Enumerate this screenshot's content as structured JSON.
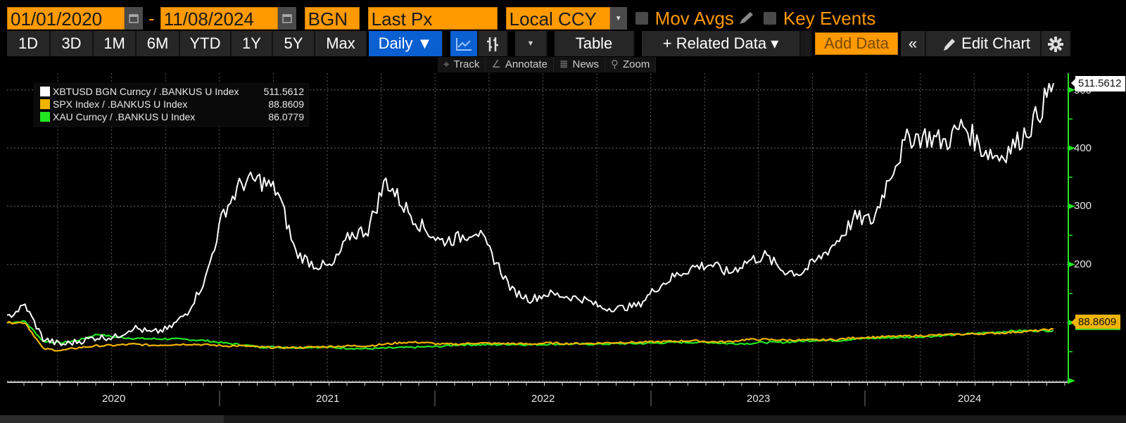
{
  "toolbar": {
    "start_date": "01/01/2020",
    "end_date": "11/08/2024",
    "date_separator": "-",
    "pricing_source": "BGN",
    "field": "Last Px",
    "currency": "Local CCY",
    "mov_avgs_label": "Mov Avgs",
    "key_events_label": "Key Events",
    "periods": [
      "1D",
      "3D",
      "1M",
      "6M",
      "YTD",
      "1Y",
      "5Y",
      "Max"
    ],
    "frequency": "Daily ▼",
    "table_label": "Table",
    "related_data_label": "+ Related Data ▾",
    "add_data_placeholder": "Add Data",
    "collapse_label": "«",
    "edit_chart_label": "Edit Chart"
  },
  "subtoolbar": {
    "track": "Track",
    "annotate": "Annotate",
    "news": "News",
    "zoom": "Zoom"
  },
  "legend": [
    {
      "name": "XBTUSD BGN Curncy / .BANKUS U Index",
      "value": "511.5612",
      "color": "#ffffff"
    },
    {
      "name": "SPX Index / .BANKUS U Index",
      "value": "88.8609",
      "color": "#f0b400"
    },
    {
      "name": "XAU Curncy / .BANKUS U Index",
      "value": "86.0779",
      "color": "#22e622"
    }
  ],
  "axis": {
    "y_ticks": [
      "500",
      "400",
      "300",
      "200",
      "100"
    ],
    "x_years": [
      "2020",
      "2021",
      "2022",
      "2023",
      "2024"
    ],
    "last_tags": {
      "xbt": "511.5612",
      "spx": "88.8609"
    }
  },
  "colors": {
    "accent_orange": "#ff9a00",
    "axis_green": "#22e622",
    "active_blue": "#0a5fd1"
  },
  "chart_data": {
    "type": "line",
    "title": "",
    "xlabel": "",
    "ylabel": "",
    "ylim": [
      0,
      520
    ],
    "xlim": [
      "2020-01-01",
      "2024-11-08"
    ],
    "grid": true,
    "legend_position": "top-left",
    "x": [
      "2020-01",
      "2020-02",
      "2020-03",
      "2020-04",
      "2020-05",
      "2020-06",
      "2020-07",
      "2020-08",
      "2020-09",
      "2020-10",
      "2020-11",
      "2020-12",
      "2021-01",
      "2021-02",
      "2021-03",
      "2021-04",
      "2021-05",
      "2021-06",
      "2021-07",
      "2021-08",
      "2021-09",
      "2021-10",
      "2021-11",
      "2021-12",
      "2022-01",
      "2022-02",
      "2022-03",
      "2022-04",
      "2022-05",
      "2022-06",
      "2022-07",
      "2022-08",
      "2022-09",
      "2022-10",
      "2022-11",
      "2022-12",
      "2023-01",
      "2023-02",
      "2023-03",
      "2023-04",
      "2023-05",
      "2023-06",
      "2023-07",
      "2023-08",
      "2023-09",
      "2023-10",
      "2023-11",
      "2023-12",
      "2024-01",
      "2024-02",
      "2024-03",
      "2024-04",
      "2024-05",
      "2024-06",
      "2024-07",
      "2024-08",
      "2024-09",
      "2024-10",
      "2024-11"
    ],
    "series": [
      {
        "name": "XBTUSD BGN Curncy / .BANKUS U Index",
        "color": "#ffffff",
        "values": [
          108,
          130,
          72,
          62,
          68,
          75,
          75,
          92,
          82,
          90,
          118,
          175,
          290,
          340,
          345,
          325,
          220,
          200,
          195,
          250,
          260,
          345,
          300,
          265,
          240,
          245,
          260,
          210,
          155,
          140,
          150,
          145,
          140,
          125,
          125,
          130,
          160,
          180,
          195,
          200,
          185,
          205,
          215,
          190,
          185,
          210,
          240,
          280,
          275,
          360,
          420,
          420,
          410,
          440,
          400,
          385,
          410,
          450,
          511.56
        ]
      },
      {
        "name": "SPX Index / .BANKUS U Index",
        "color": "#f0b400",
        "values": [
          100,
          100,
          55,
          52,
          57,
          60,
          61,
          63,
          61,
          62,
          63,
          62,
          60,
          60,
          58,
          57,
          57,
          58,
          59,
          60,
          60,
          63,
          66,
          66,
          63,
          63,
          65,
          64,
          64,
          63,
          65,
          64,
          64,
          65,
          66,
          66,
          67,
          68,
          69,
          67,
          67,
          71,
          71,
          70,
          70,
          70,
          71,
          74,
          75,
          76,
          77,
          78,
          79,
          80,
          81,
          82,
          84,
          86,
          88.86
        ]
      },
      {
        "name": "XAU Curncy / .BANKUS U Index",
        "color": "#22e622",
        "values": [
          100,
          102,
          68,
          65,
          70,
          80,
          75,
          73,
          72,
          72,
          71,
          69,
          65,
          62,
          58,
          58,
          57,
          58,
          57,
          56,
          55,
          56,
          57,
          58,
          59,
          62,
          62,
          62,
          63,
          62,
          63,
          63,
          63,
          63,
          64,
          64,
          65,
          66,
          66,
          66,
          64,
          64,
          66,
          66,
          68,
          70,
          69,
          72,
          73,
          74,
          75,
          76,
          78,
          80,
          82,
          84,
          86,
          86,
          86.08
        ]
      }
    ]
  }
}
